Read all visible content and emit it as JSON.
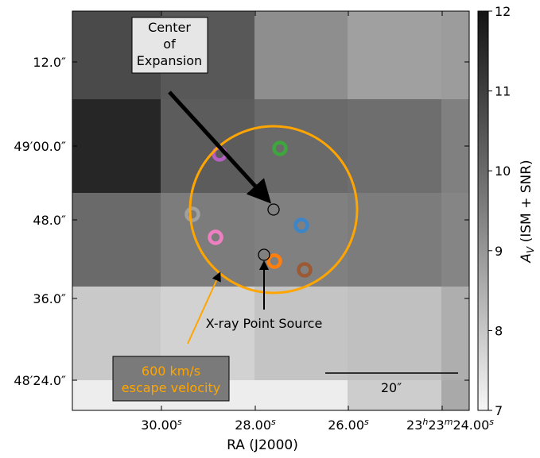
{
  "chart_data": {
    "type": "heatmap",
    "title": "",
    "xlabel": "RA (J2000)",
    "ylabel": "",
    "x_tick_labels": [
      "30.00",
      "28.00",
      "26.00",
      "23",
      "23",
      "24.00"
    ],
    "x_tick_superscripts": [
      "s",
      "s",
      "s",
      "h",
      "m",
      "s"
    ],
    "x_ticks": [
      {
        "label": "30.00",
        "sup": "s"
      },
      {
        "label": "28.00",
        "sup": "s"
      },
      {
        "label": "26.00",
        "sup": "s"
      },
      {
        "label": "23h23m24.00s",
        "parts": [
          "23",
          "h",
          "23",
          "m",
          "24.00",
          "s"
        ]
      }
    ],
    "y_ticks": [
      {
        "label": "12.0″"
      },
      {
        "label": "49′00.0″"
      },
      {
        "label": "48.0″"
      },
      {
        "label": "36.0″"
      },
      {
        "label": "48′24.0″"
      }
    ],
    "colorbar": {
      "label": "A_V (ISM + SNR)",
      "label_main": "A",
      "label_sub": "V",
      "label_rest": " (ISM + SNR)",
      "min": 7,
      "max": 12,
      "ticks": [
        "7",
        "8",
        "9",
        "10",
        "11",
        "12"
      ],
      "colormap": "gray_r"
    },
    "grid": {
      "cols": 5,
      "rows": 5,
      "values": [
        [
          10.8,
          10.5,
          9.3,
          8.9,
          9.0
        ],
        [
          11.6,
          10.4,
          10.1,
          10.0,
          9.6
        ],
        [
          10.1,
          9.7,
          9.6,
          9.7,
          9.5
        ],
        [
          8.0,
          7.8,
          8.1,
          8.2,
          8.6
        ],
        [
          7.2,
          7.2,
          7.2,
          7.9,
          8.7
        ]
      ]
    },
    "annotations": {
      "center_label": [
        "Center",
        "of",
        "Expansion"
      ],
      "xray_label": "X-ray Point Source",
      "velocity_label": [
        "600 km/s",
        "escape velocity"
      ],
      "scalebar_label": "20″"
    },
    "markers": [
      {
        "name": "purple",
        "color": "#b65fc2"
      },
      {
        "name": "green",
        "color": "#3fa53f"
      },
      {
        "name": "gray",
        "color": "#a0a0a0"
      },
      {
        "name": "blue",
        "color": "#3c85c8"
      },
      {
        "name": "pink",
        "color": "#ee80c2"
      },
      {
        "name": "orange",
        "color": "#ff7f0e"
      },
      {
        "name": "brown",
        "color": "#9b5a34"
      }
    ],
    "escape_circle_color": "#ffa500"
  }
}
